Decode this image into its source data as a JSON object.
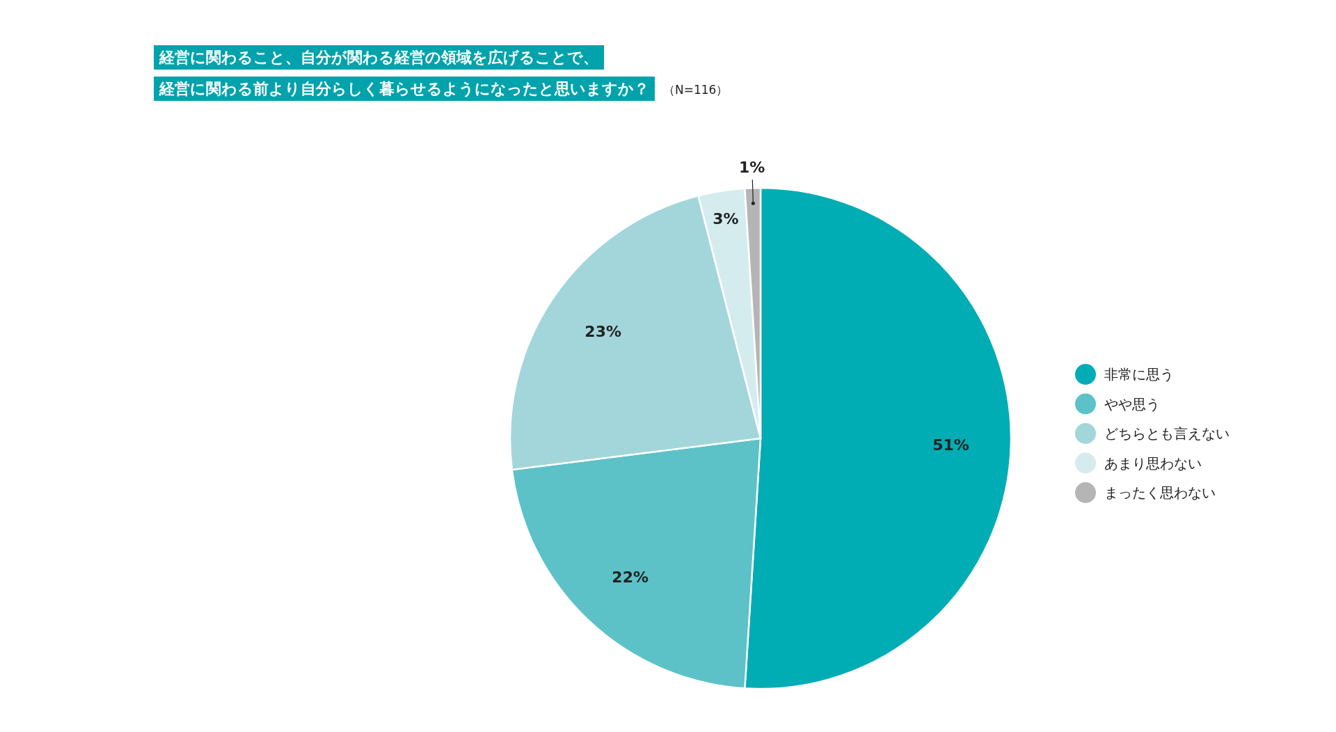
{
  "chart_data": {
    "type": "pie",
    "title": "経営に関わること、自分が関わる経営の領域を広げることで、",
    "subtitle": "経営に関わる前より自分らしく暮らせるようになったと思いますか？",
    "annotations": [
      "（N=116）"
    ],
    "categories": [
      "非常に思う",
      "やや思う",
      "どちらとも言えない",
      "あまり思わない",
      "まったく思わない"
    ],
    "values": [
      51,
      22,
      23,
      3,
      1
    ],
    "value_labels": [
      "51%",
      "22%",
      "23%",
      "3%",
      "1%"
    ],
    "colors": [
      "#00adb5",
      "#5cc2c7",
      "#a3d6da",
      "#d5ecee",
      "#b5b5b5"
    ],
    "legend": "right"
  }
}
